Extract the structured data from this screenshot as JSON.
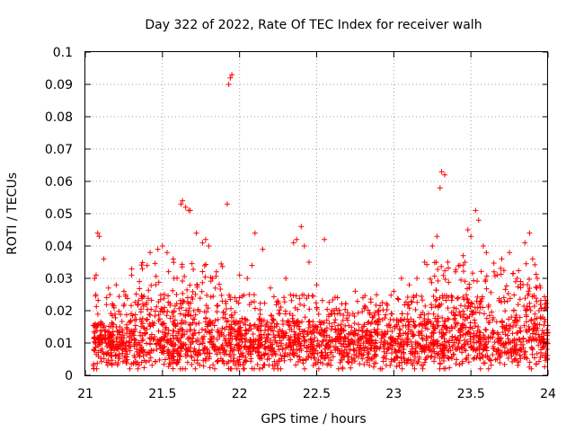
{
  "chart_data": {
    "type": "scatter",
    "title": "Day 322 of 2022, Rate Of TEC Index for receiver walh",
    "xlabel": "GPS time / hours",
    "ylabel": "ROTI / TECUs",
    "xlim": [
      21,
      24
    ],
    "ylim": [
      0,
      0.1
    ],
    "x_ticks": [
      "21",
      "21.5",
      "22",
      "22.5",
      "23",
      "23.5",
      "24"
    ],
    "y_ticks": [
      "0",
      "0.01",
      "0.02",
      "0.03",
      "0.04",
      "0.05",
      "0.06",
      "0.07",
      "0.08",
      "0.09",
      "0.1"
    ],
    "grid": true,
    "marker": "+",
    "color": "#ff0000",
    "series": [
      {
        "points": [
          [
            21.08,
            0.044
          ],
          [
            21.09,
            0.043
          ],
          [
            21.12,
            0.036
          ],
          [
            21.06,
            0.03
          ],
          [
            21.07,
            0.031
          ],
          [
            21.15,
            0.027
          ],
          [
            21.2,
            0.028
          ],
          [
            21.25,
            0.026
          ],
          [
            21.3,
            0.031
          ],
          [
            21.35,
            0.029
          ],
          [
            21.4,
            0.034
          ],
          [
            21.42,
            0.038
          ],
          [
            21.47,
            0.039
          ],
          [
            21.5,
            0.04
          ],
          [
            21.53,
            0.038
          ],
          [
            21.57,
            0.036
          ],
          [
            21.62,
            0.053
          ],
          [
            21.63,
            0.054
          ],
          [
            21.65,
            0.052
          ],
          [
            21.67,
            0.051
          ],
          [
            21.68,
            0.051
          ],
          [
            21.72,
            0.044
          ],
          [
            21.76,
            0.041
          ],
          [
            21.78,
            0.042
          ],
          [
            21.8,
            0.04
          ],
          [
            21.85,
            0.032
          ],
          [
            21.92,
            0.053
          ],
          [
            21.94,
            0.092
          ],
          [
            21.95,
            0.093
          ],
          [
            21.93,
            0.09
          ],
          [
            22.0,
            0.031
          ],
          [
            22.05,
            0.03
          ],
          [
            22.08,
            0.034
          ],
          [
            22.1,
            0.044
          ],
          [
            22.15,
            0.039
          ],
          [
            22.2,
            0.027
          ],
          [
            22.25,
            0.023
          ],
          [
            22.3,
            0.03
          ],
          [
            22.35,
            0.041
          ],
          [
            22.37,
            0.042
          ],
          [
            22.4,
            0.046
          ],
          [
            22.42,
            0.04
          ],
          [
            22.45,
            0.035
          ],
          [
            22.5,
            0.028
          ],
          [
            22.55,
            0.042
          ],
          [
            22.6,
            0.02
          ],
          [
            22.7,
            0.017
          ],
          [
            22.75,
            0.026
          ],
          [
            22.8,
            0.024
          ],
          [
            22.9,
            0.02
          ],
          [
            23.0,
            0.026
          ],
          [
            23.05,
            0.03
          ],
          [
            23.1,
            0.028
          ],
          [
            23.15,
            0.03
          ],
          [
            23.2,
            0.035
          ],
          [
            23.25,
            0.04
          ],
          [
            23.28,
            0.043
          ],
          [
            23.3,
            0.058
          ],
          [
            23.31,
            0.063
          ],
          [
            23.33,
            0.062
          ],
          [
            23.35,
            0.035
          ],
          [
            23.4,
            0.032
          ],
          [
            23.45,
            0.037
          ],
          [
            23.48,
            0.045
          ],
          [
            23.5,
            0.043
          ],
          [
            23.53,
            0.051
          ],
          [
            23.55,
            0.048
          ],
          [
            23.58,
            0.04
          ],
          [
            23.6,
            0.038
          ],
          [
            23.65,
            0.032
          ],
          [
            23.7,
            0.036
          ],
          [
            23.75,
            0.038
          ],
          [
            23.8,
            0.03
          ],
          [
            23.85,
            0.041
          ],
          [
            23.88,
            0.044
          ],
          [
            23.9,
            0.036
          ],
          [
            23.93,
            0.03
          ],
          [
            23.95,
            0.027
          ],
          [
            23.98,
            0.022
          ],
          [
            23.99,
            0.021
          ]
        ],
        "bulk_band": {
          "x_range": [
            21.05,
            24.0
          ],
          "typical_range": [
            0.003,
            0.025
          ],
          "dense_center": 0.01
        }
      }
    ]
  }
}
